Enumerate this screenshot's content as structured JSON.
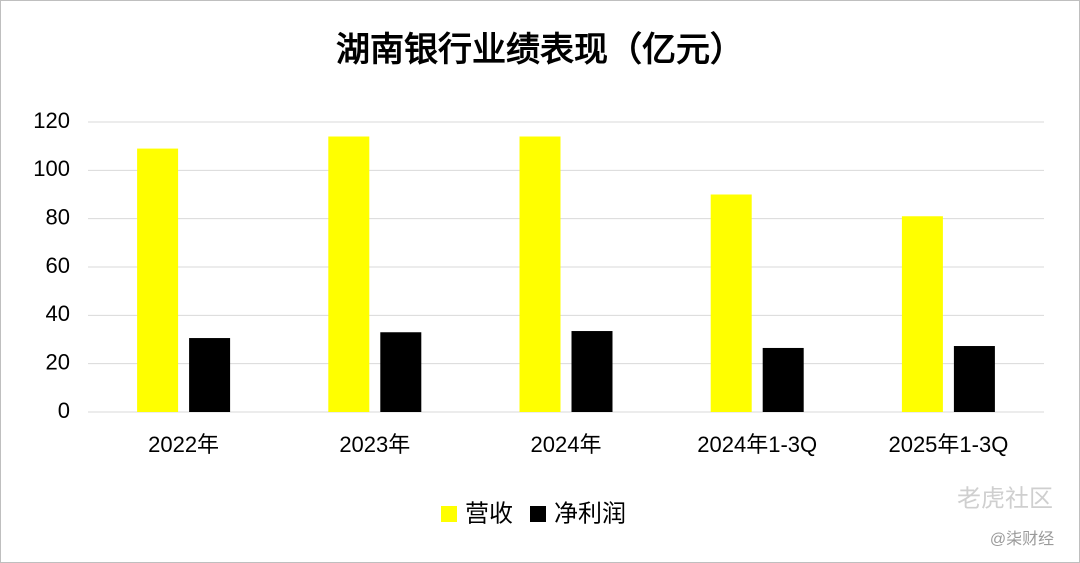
{
  "chart_data": {
    "type": "bar",
    "title": "湖南银行业绩表现（亿元）",
    "categories": [
      "2022年",
      "2023年",
      "2024年",
      "2024年1-3Q",
      "2025年1-3Q"
    ],
    "series": [
      {
        "name": "营收",
        "color": "#ffff00",
        "values": [
          109,
          114,
          114,
          90,
          81
        ]
      },
      {
        "name": "净利润",
        "color": "#000000",
        "values": [
          30.6,
          33,
          33.5,
          26.5,
          27.3
        ]
      }
    ],
    "ylim": [
      0,
      120
    ],
    "yticks": [
      0,
      20,
      40,
      60,
      80,
      100,
      120
    ],
    "grid": true,
    "legend": "bottom",
    "watermarks": [
      "老虎社区",
      "@柒财经"
    ]
  }
}
